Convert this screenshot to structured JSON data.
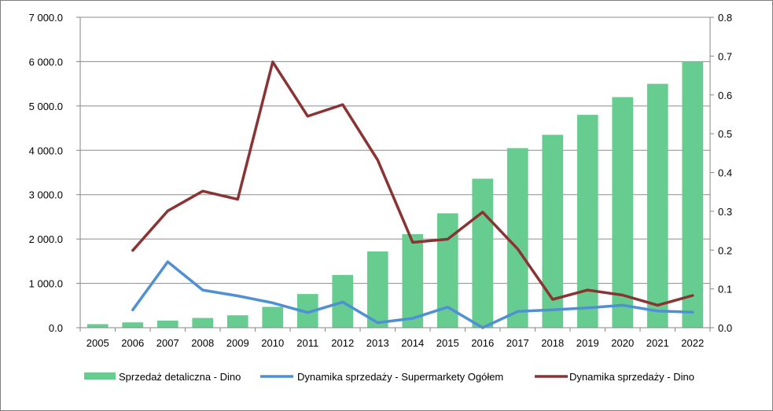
{
  "chart_data": {
    "type": "bar",
    "title": "",
    "categories": [
      "2005",
      "2006",
      "2007",
      "2008",
      "2009",
      "2010",
      "2011",
      "2012",
      "2013",
      "2014",
      "2015",
      "2016",
      "2017",
      "2018",
      "2019",
      "2020",
      "2021",
      "2022"
    ],
    "y_left": {
      "min": 0,
      "max": 7000,
      "step": 1000,
      "tick_labels": [
        "0.0",
        "1 000.0",
        "2 000.0",
        "3 000.0",
        "4 000.0",
        "5 000.0",
        "6 000.0",
        "7 000.0"
      ]
    },
    "y_right": {
      "min": 0,
      "max": 0.8,
      "step": 0.1,
      "tick_labels": [
        "0.0",
        "0.1",
        "0.2",
        "0.3",
        "0.4",
        "0.5",
        "0.6",
        "0.7",
        "0.8"
      ]
    },
    "grid": "horizontal",
    "legend_position": "bottom",
    "series": [
      {
        "name": "Sprzedaż detaliczna - Dino",
        "type": "bar",
        "axis": "left",
        "color": "#66cc8f",
        "values": [
          80,
          120,
          160,
          220,
          280,
          470,
          760,
          1190,
          1720,
          2110,
          2580,
          3360,
          4050,
          4350,
          4800,
          5200,
          5500,
          6000
        ]
      },
      {
        "name": "Dynamika sprzedaży - Supermarkety Ogółem",
        "type": "line",
        "axis": "right",
        "color": "#4f8fd6",
        "values": [
          null,
          0.046,
          0.17,
          0.097,
          0.082,
          0.064,
          0.039,
          0.066,
          0.013,
          0.024,
          0.053,
          0.0,
          0.042,
          0.046,
          0.051,
          0.058,
          0.043,
          0.04
        ]
      },
      {
        "name": "Dynamika sprzedaży - Dino",
        "type": "line",
        "axis": "right",
        "color": "#8b3333",
        "values": [
          null,
          0.199,
          0.301,
          0.352,
          0.331,
          0.685,
          0.545,
          0.575,
          0.432,
          0.22,
          0.228,
          0.298,
          0.203,
          0.073,
          0.097,
          0.084,
          0.058,
          0.083
        ]
      }
    ]
  }
}
